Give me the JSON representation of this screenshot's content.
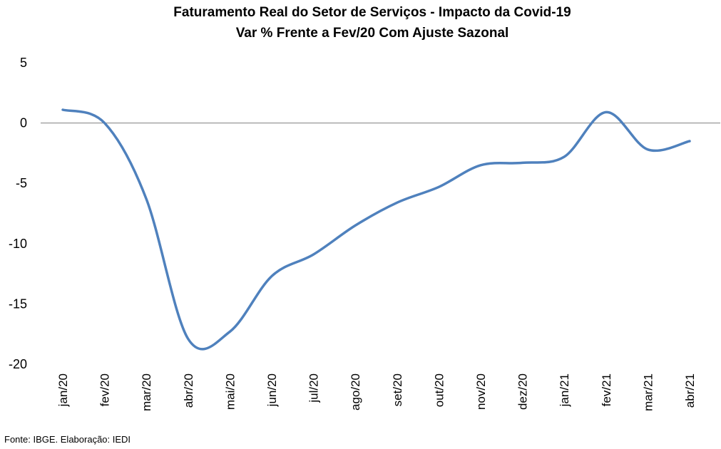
{
  "chart_data": {
    "type": "line",
    "title": "Faturamento Real do Setor de Serviços - Impacto da Covid-19",
    "subtitle": "Var % Frente a Fev/20 Com Ajuste Sazonal",
    "categories": [
      "jan/20",
      "fev/20",
      "mar/20",
      "abr/20",
      "mai/20",
      "jun/20",
      "jul/20",
      "ago/20",
      "set/20",
      "out/20",
      "nov/20",
      "dez/20",
      "jan/21",
      "fev/21",
      "mar/21",
      "abr/21"
    ],
    "series": [
      {
        "values": [
          1.1,
          0.0,
          -6.3,
          -17.9,
          -17.3,
          -12.7,
          -10.9,
          -8.5,
          -6.6,
          -5.3,
          -3.5,
          -3.3,
          -2.8,
          0.9,
          -2.2,
          -1.5
        ],
        "color": "#4f81bd"
      }
    ],
    "ylim": [
      -20,
      5
    ],
    "yticks": [
      "5",
      "0",
      "-5",
      "-10",
      "-15",
      "-20"
    ],
    "ytick_values": [
      5,
      0,
      -5,
      -10,
      -15,
      -20
    ],
    "zero_line": true,
    "grid": false,
    "legend": "none"
  },
  "footer": {
    "source": "Fonte: IBGE. Elaboração: IEDI"
  }
}
